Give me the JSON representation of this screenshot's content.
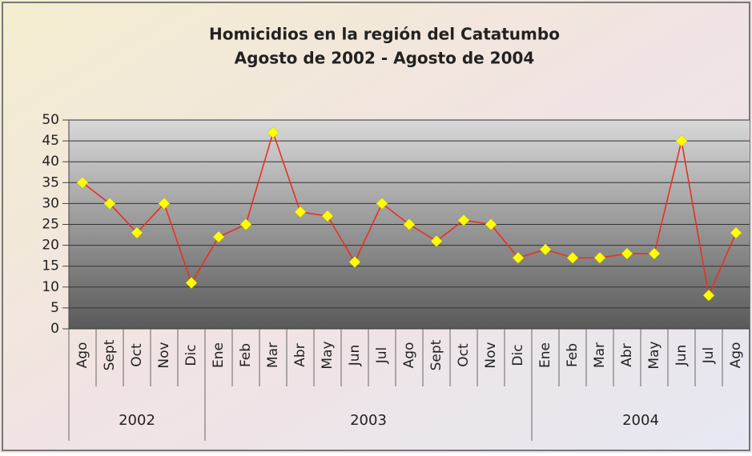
{
  "chart_data": {
    "type": "line",
    "title": "Homicidios en la región del Catatumbo",
    "subtitle": "Agosto de 2002 - Agosto de 2004",
    "groups": [
      {
        "label": "2002",
        "categories": [
          "Ago",
          "Sept",
          "Oct",
          "Nov",
          "Dic"
        ],
        "values": [
          35,
          30,
          23,
          30,
          11
        ]
      },
      {
        "label": "2003",
        "categories": [
          "Ene",
          "Feb",
          "Mar",
          "Abr",
          "May",
          "Jun",
          "Jul",
          "Ago",
          "Sept",
          "Oct",
          "Nov",
          "Dic"
        ],
        "values": [
          22,
          25,
          47,
          28,
          27,
          16,
          30,
          25,
          21,
          26,
          25,
          17
        ]
      },
      {
        "label": "2004",
        "categories": [
          "Ene",
          "Feb",
          "Mar",
          "Abr",
          "May",
          "Jun",
          "Jul",
          "Ago"
        ],
        "values": [
          19,
          17,
          17,
          18,
          18,
          45,
          8,
          23
        ]
      }
    ],
    "color": "#e83020",
    "marker_color": "#ffff00",
    "ylim": [
      0,
      50
    ],
    "yticks": [
      0,
      5,
      10,
      15,
      20,
      25,
      30,
      35,
      40,
      45,
      50
    ],
    "grid": true
  }
}
